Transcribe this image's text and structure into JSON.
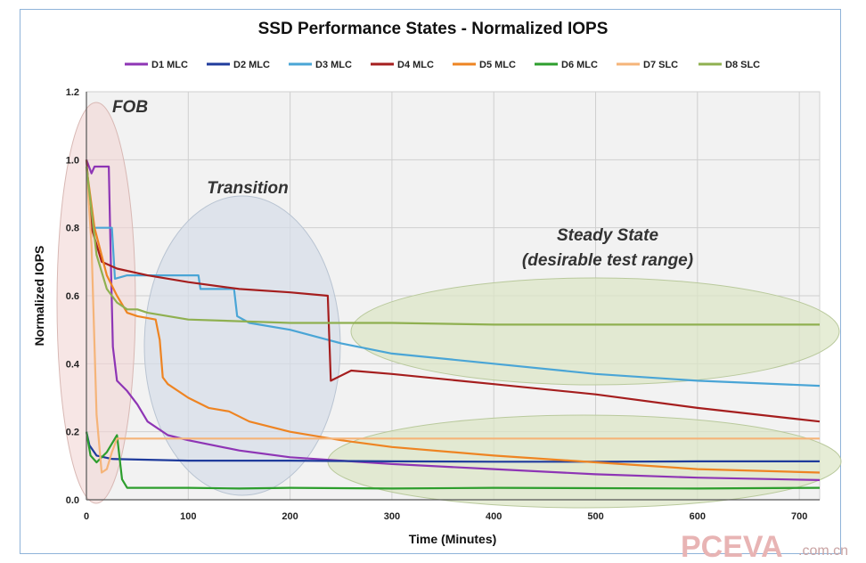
{
  "chart_data": {
    "type": "line",
    "title": "SSD Performance States - Normalized IOPS",
    "xlabel": "Time (Minutes)",
    "ylabel": "Normalized IOPS",
    "xlim": [
      0,
      720
    ],
    "ylim": [
      0,
      1.2
    ],
    "xticks": [
      "0",
      "100",
      "200",
      "300",
      "400",
      "500",
      "600",
      "700"
    ],
    "yticks": [
      "0.0",
      "0.2",
      "0.4",
      "0.6",
      "0.8",
      "1.0",
      "1.2"
    ],
    "grid": true,
    "legend_position": "top",
    "annotations": {
      "fob": "FOB",
      "transition": "Transition",
      "steady_line1": "Steady State",
      "steady_line2": "(desirable test range)"
    },
    "watermark": {
      "brand": "PCEVA",
      "suffix": ".com.cn"
    },
    "series": [
      {
        "name": "D1 MLC",
        "color": "#8e35b5",
        "points": [
          [
            0,
            1.0
          ],
          [
            5,
            0.96
          ],
          [
            8,
            0.98
          ],
          [
            22,
            0.98
          ],
          [
            24,
            0.7
          ],
          [
            26,
            0.45
          ],
          [
            30,
            0.35
          ],
          [
            40,
            0.32
          ],
          [
            50,
            0.28
          ],
          [
            60,
            0.23
          ],
          [
            80,
            0.19
          ],
          [
            100,
            0.175
          ],
          [
            150,
            0.145
          ],
          [
            200,
            0.125
          ],
          [
            300,
            0.105
          ],
          [
            400,
            0.09
          ],
          [
            500,
            0.075
          ],
          [
            600,
            0.065
          ],
          [
            720,
            0.058
          ]
        ]
      },
      {
        "name": "D2 MLC",
        "color": "#1f3b9c",
        "points": [
          [
            0,
            0.2
          ],
          [
            3,
            0.16
          ],
          [
            10,
            0.13
          ],
          [
            25,
            0.12
          ],
          [
            100,
            0.115
          ],
          [
            200,
            0.115
          ],
          [
            300,
            0.113
          ],
          [
            400,
            0.112
          ],
          [
            500,
            0.112
          ],
          [
            600,
            0.113
          ],
          [
            720,
            0.113
          ]
        ]
      },
      {
        "name": "D3 MLC",
        "color": "#4aa5d6",
        "points": [
          [
            0,
            1.0
          ],
          [
            5,
            0.8
          ],
          [
            25,
            0.8
          ],
          [
            28,
            0.65
          ],
          [
            40,
            0.66
          ],
          [
            60,
            0.66
          ],
          [
            110,
            0.66
          ],
          [
            112,
            0.62
          ],
          [
            145,
            0.62
          ],
          [
            148,
            0.54
          ],
          [
            160,
            0.52
          ],
          [
            200,
            0.5
          ],
          [
            250,
            0.46
          ],
          [
            300,
            0.43
          ],
          [
            400,
            0.4
          ],
          [
            500,
            0.37
          ],
          [
            600,
            0.35
          ],
          [
            720,
            0.335
          ]
        ]
      },
      {
        "name": "D4 MLC",
        "color": "#a51e1e",
        "points": [
          [
            0,
            1.0
          ],
          [
            5,
            0.8
          ],
          [
            15,
            0.7
          ],
          [
            30,
            0.68
          ],
          [
            60,
            0.66
          ],
          [
            100,
            0.64
          ],
          [
            150,
            0.62
          ],
          [
            200,
            0.61
          ],
          [
            237,
            0.6
          ],
          [
            240,
            0.35
          ],
          [
            260,
            0.38
          ],
          [
            300,
            0.37
          ],
          [
            400,
            0.34
          ],
          [
            500,
            0.31
          ],
          [
            600,
            0.27
          ],
          [
            720,
            0.23
          ]
        ]
      },
      {
        "name": "D5 MLC",
        "color": "#ee8422",
        "points": [
          [
            0,
            0.98
          ],
          [
            8,
            0.8
          ],
          [
            20,
            0.66
          ],
          [
            30,
            0.6
          ],
          [
            40,
            0.55
          ],
          [
            50,
            0.54
          ],
          [
            68,
            0.53
          ],
          [
            72,
            0.47
          ],
          [
            75,
            0.36
          ],
          [
            80,
            0.34
          ],
          [
            100,
            0.3
          ],
          [
            120,
            0.27
          ],
          [
            140,
            0.26
          ],
          [
            160,
            0.23
          ],
          [
            200,
            0.2
          ],
          [
            250,
            0.175
          ],
          [
            300,
            0.155
          ],
          [
            400,
            0.13
          ],
          [
            500,
            0.11
          ],
          [
            600,
            0.09
          ],
          [
            720,
            0.08
          ]
        ]
      },
      {
        "name": "D6 MLC",
        "color": "#2d9e2d",
        "points": [
          [
            0,
            0.2
          ],
          [
            4,
            0.13
          ],
          [
            10,
            0.11
          ],
          [
            20,
            0.14
          ],
          [
            30,
            0.19
          ],
          [
            35,
            0.06
          ],
          [
            40,
            0.035
          ],
          [
            100,
            0.035
          ],
          [
            150,
            0.033
          ],
          [
            200,
            0.035
          ],
          [
            300,
            0.033
          ],
          [
            400,
            0.035
          ],
          [
            500,
            0.034
          ],
          [
            600,
            0.033
          ],
          [
            720,
            0.035
          ]
        ]
      },
      {
        "name": "D7 SLC",
        "color": "#f5b479",
        "points": [
          [
            0,
            0.98
          ],
          [
            5,
            0.75
          ],
          [
            10,
            0.25
          ],
          [
            15,
            0.08
          ],
          [
            20,
            0.09
          ],
          [
            25,
            0.14
          ],
          [
            30,
            0.18
          ],
          [
            100,
            0.18
          ],
          [
            200,
            0.18
          ],
          [
            300,
            0.18
          ],
          [
            400,
            0.18
          ],
          [
            500,
            0.18
          ],
          [
            600,
            0.18
          ],
          [
            720,
            0.18
          ]
        ]
      },
      {
        "name": "D8 SLC",
        "color": "#8fb050",
        "points": [
          [
            0,
            0.98
          ],
          [
            10,
            0.72
          ],
          [
            20,
            0.62
          ],
          [
            30,
            0.58
          ],
          [
            40,
            0.56
          ],
          [
            50,
            0.56
          ],
          [
            60,
            0.55
          ],
          [
            100,
            0.53
          ],
          [
            200,
            0.52
          ],
          [
            300,
            0.52
          ],
          [
            400,
            0.515
          ],
          [
            500,
            0.515
          ],
          [
            600,
            0.515
          ],
          [
            720,
            0.515
          ]
        ]
      }
    ]
  }
}
